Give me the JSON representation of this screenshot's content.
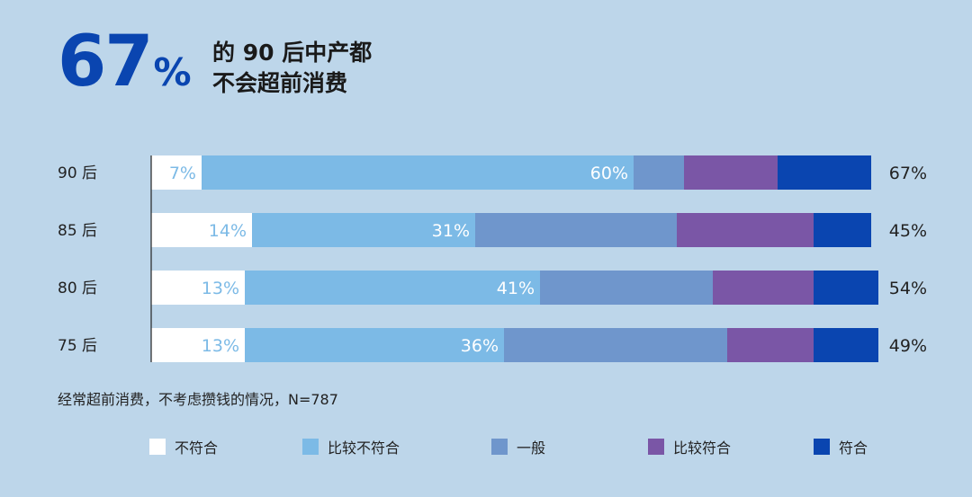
{
  "headline": {
    "big_number": "67",
    "big_unit": "%",
    "line1": "的 90 后中产都",
    "line2": "不会超前消费"
  },
  "note": "经常超前消费，不考虑攒钱的情况，N=787",
  "chart_data": {
    "type": "bar",
    "orientation": "horizontal",
    "stacked": true,
    "categories": [
      "90 后",
      "85 后",
      "80 后",
      "75 后"
    ],
    "series": [
      {
        "name": "不符合",
        "color": "#ffffff",
        "values": [
          7,
          14,
          13,
          13
        ]
      },
      {
        "name": "比较不符合",
        "color": "#7cbae6",
        "values": [
          60,
          31,
          41,
          36
        ]
      },
      {
        "name": "一般",
        "color": "#6f96cc",
        "values": [
          7,
          28,
          24,
          31
        ]
      },
      {
        "name": "比较符合",
        "color": "#7a56a6",
        "values": [
          13,
          19,
          14,
          12
        ]
      },
      {
        "name": "符合",
        "color": "#0a45b0",
        "values": [
          13,
          8,
          9,
          9
        ]
      }
    ],
    "data_labels": {
      "不符合": [
        "7%",
        "14%",
        "13%",
        "13%"
      ],
      "比较不符合": [
        "60%",
        "31%",
        "41%",
        "36%"
      ]
    },
    "right_labels": [
      "67%",
      "45%",
      "54%",
      "49%"
    ],
    "xlim": [
      0,
      100
    ],
    "grid": false,
    "legend_position": "bottom"
  }
}
